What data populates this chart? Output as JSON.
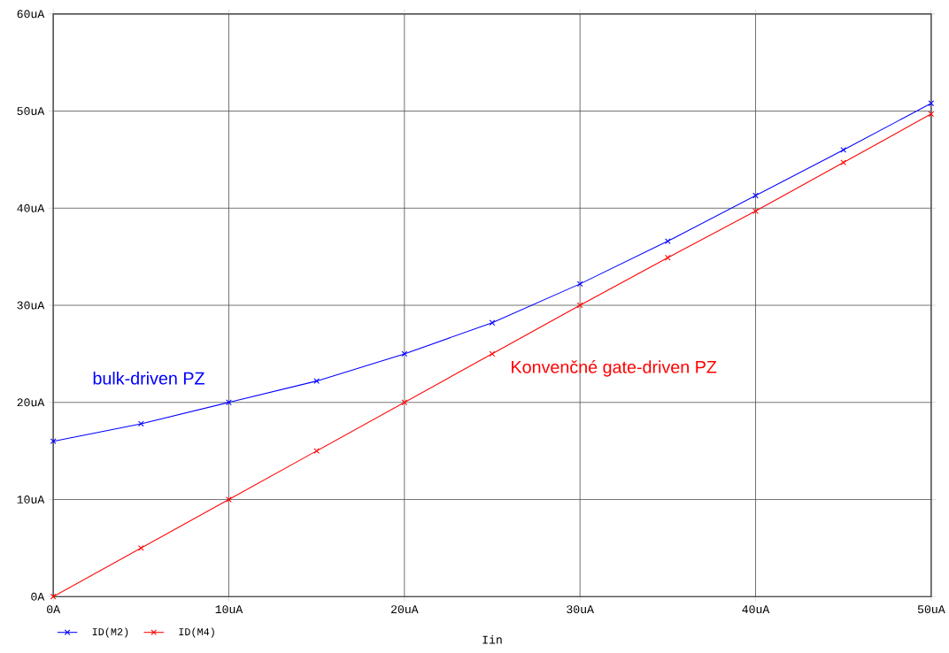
{
  "chart_data": {
    "type": "line",
    "xlabel": "Iin",
    "x": [
      0,
      5,
      10,
      15,
      20,
      25,
      30,
      35,
      40,
      45,
      50
    ],
    "series": [
      {
        "name": "ID(M2)",
        "color": "#0000ff",
        "values": [
          16,
          17.8,
          20,
          22.2,
          25,
          28.2,
          32.2,
          36.6,
          41.3,
          46,
          50.8
        ]
      },
      {
        "name": "ID(M4)",
        "color": "#ff0000",
        "values": [
          0,
          5,
          10,
          15,
          20,
          25,
          30,
          34.9,
          39.7,
          44.7,
          49.7
        ]
      }
    ],
    "xlim": [
      0,
      50
    ],
    "ylim": [
      0,
      60
    ],
    "xticks": [
      {
        "value": 0,
        "label": "0A"
      },
      {
        "value": 10,
        "label": "10uA"
      },
      {
        "value": 20,
        "label": "20uA"
      },
      {
        "value": 30,
        "label": "30uA"
      },
      {
        "value": 40,
        "label": "40uA"
      },
      {
        "value": 50,
        "label": "50uA"
      }
    ],
    "yticks": [
      {
        "value": 0,
        "label": "0A"
      },
      {
        "value": 10,
        "label": "10uA"
      },
      {
        "value": 20,
        "label": "20uA"
      },
      {
        "value": 30,
        "label": "30uA"
      },
      {
        "value": 40,
        "label": "40uA"
      },
      {
        "value": 50,
        "label": "50uA"
      },
      {
        "value": 60,
        "label": "60uA"
      }
    ],
    "annotations": [
      "bulk-driven PZ",
      "Konvenčné gate-driven PZ"
    ],
    "grid": true,
    "legend": "bottom left",
    "marker": "cross",
    "line_style": "solid"
  }
}
